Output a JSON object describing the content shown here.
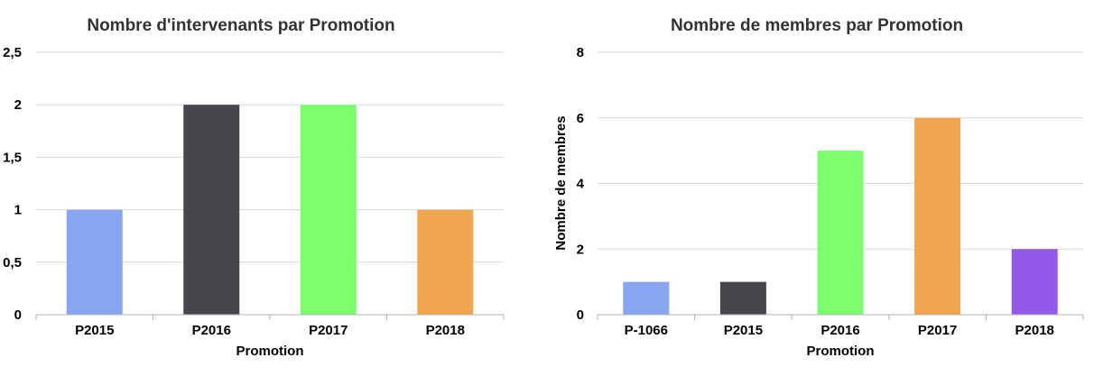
{
  "chart_data": [
    {
      "type": "bar",
      "title": "Nombre d'intervenants par Promotion",
      "xlabel": "Promotion",
      "ylabel": "",
      "categories": [
        "P2015",
        "P2016",
        "P2017",
        "P2018"
      ],
      "values": [
        1,
        2,
        2,
        1
      ],
      "colors": [
        "#87a5f0",
        "#45454b",
        "#7bff6f",
        "#f0a64f"
      ],
      "ylim": [
        0,
        2.5
      ],
      "yticks": [
        "0",
        "0,5",
        "1",
        "1,5",
        "2",
        "2,5"
      ],
      "ytick_values": [
        0,
        0.5,
        1,
        1.5,
        2,
        2.5
      ],
      "grid": true
    },
    {
      "type": "bar",
      "title": "Nombre de membres par Promotion",
      "xlabel": "Promotion",
      "ylabel": "Nombre de membres",
      "categories": [
        "P-1066",
        "P2015",
        "P2016",
        "P2017",
        "P2018"
      ],
      "values": [
        1,
        1,
        5,
        6,
        2
      ],
      "colors": [
        "#87a5f0",
        "#45454b",
        "#7bff6f",
        "#f0a64f",
        "#935ae8"
      ],
      "ylim": [
        0,
        8
      ],
      "yticks": [
        "0",
        "2",
        "4",
        "6",
        "8"
      ],
      "ytick_values": [
        0,
        2,
        4,
        6,
        8
      ],
      "grid": true
    }
  ]
}
